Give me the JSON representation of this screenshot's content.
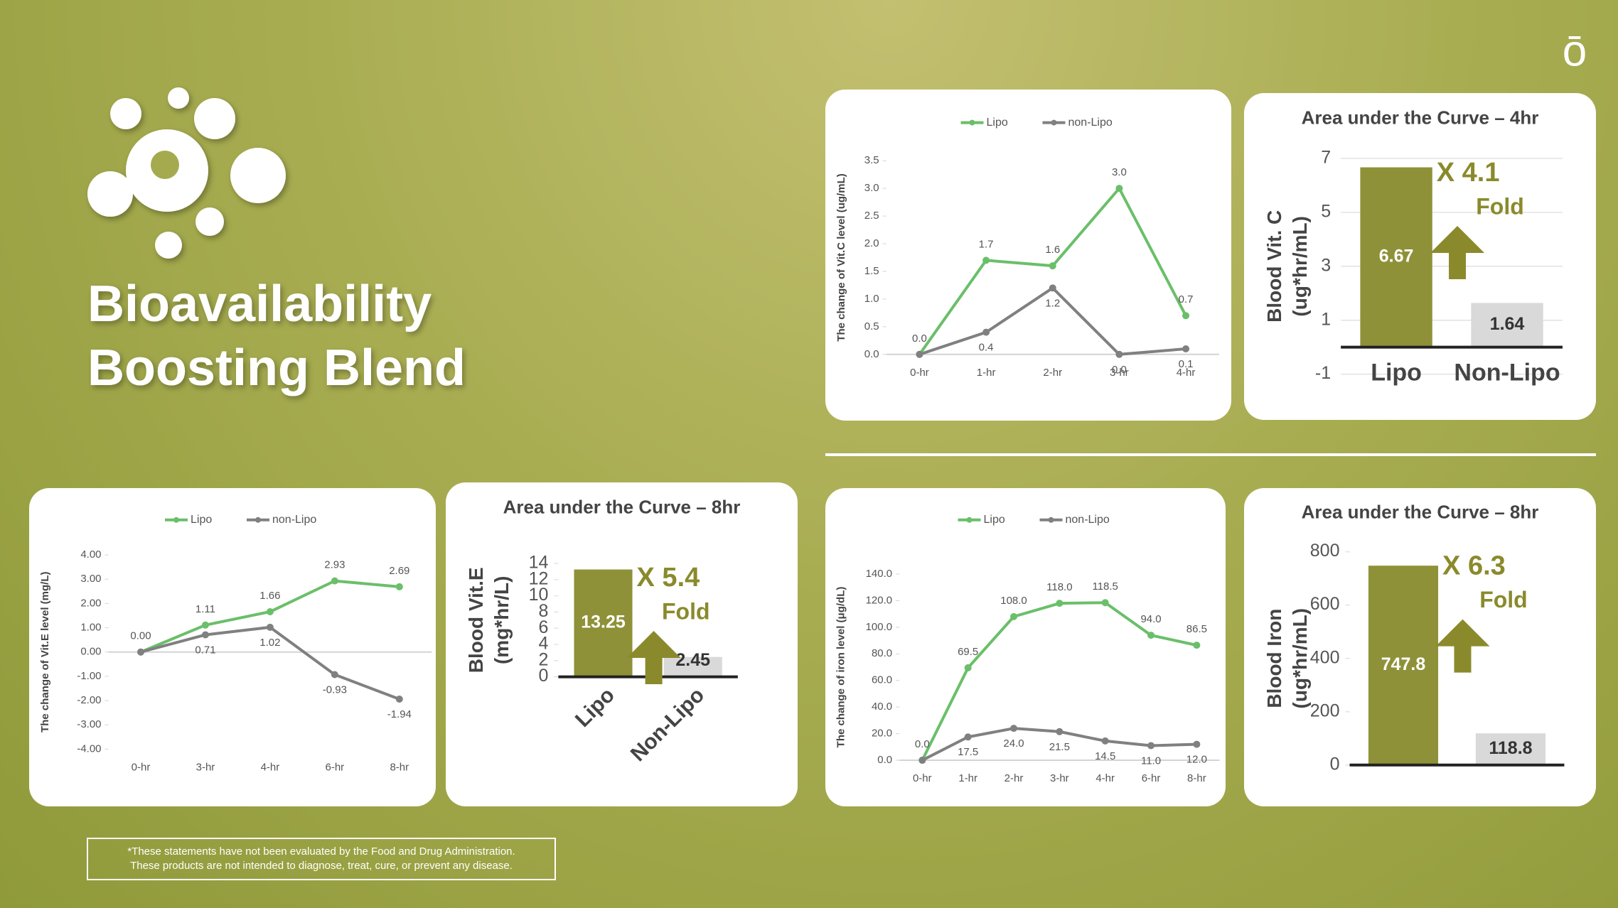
{
  "header": {
    "title": [
      "Bioavailability",
      "Boosting Blend"
    ],
    "logo": "ō"
  },
  "footer": {
    "disclaimer": [
      "*These statements have not been evaluated by the Food and Drug Administration.",
      "These products are not intended to diagnose, treat, cure, or prevent any disease."
    ]
  },
  "chart_data": [
    {
      "type": "line",
      "ylabel": "The change of Vit.C level (ug/mL)",
      "categories": [
        "0-hr",
        "1-hr",
        "2-hr",
        "3-hr",
        "4-hr"
      ],
      "series": [
        {
          "name": "Lipo",
          "color": "#6abf69",
          "values": [
            0.0,
            1.7,
            1.6,
            3.0,
            0.7
          ],
          "value_labels": [
            "0.0",
            "1.7",
            "1.6",
            "3.0",
            "0.7"
          ]
        },
        {
          "name": "non-Lipo",
          "color": "#808080",
          "values": [
            0.0,
            0.4,
            1.2,
            0.0,
            0.1
          ],
          "value_labels": [
            null,
            "0.4",
            "1.2",
            "0.0",
            "0.1"
          ]
        }
      ],
      "ylim": [
        0,
        3.5
      ],
      "yticks": [
        {
          "value": 0,
          "label": "0.0"
        },
        0.5,
        {
          "value": 1,
          "label": "1.0"
        },
        1.5,
        {
          "value": 2,
          "label": "2.0"
        },
        2.5,
        {
          "value": 3,
          "label": "3.0"
        },
        3.5
      ]
    },
    {
      "type": "bar",
      "title": "Area under the Curve – 4hr",
      "ylabel": [
        "Blood Vit. C",
        "(ug*hr/mL)"
      ],
      "categories": [
        "Lipo",
        "Non-Lipo"
      ],
      "values": [
        6.67,
        1.64
      ],
      "colors": [
        "#8e9138",
        "#d9d9d9"
      ],
      "ylim": [
        -1,
        7
      ],
      "yticks": [
        -1,
        1,
        3,
        5,
        7
      ],
      "grid": true,
      "annotations": [
        "X 4.1",
        "Fold"
      ]
    },
    {
      "type": "line",
      "ylabel": "The change of Vit.E level (mg/L)",
      "categories": [
        "0-hr",
        "3-hr",
        "4-hr",
        "6-hr",
        "8-hr"
      ],
      "series": [
        {
          "name": "Lipo",
          "color": "#6abf69",
          "values": [
            0.0,
            1.11,
            1.66,
            2.93,
            2.69
          ],
          "value_labels": [
            "0.00",
            "1.11",
            "1.66",
            "2.93",
            "2.69"
          ]
        },
        {
          "name": "non-Lipo",
          "color": "#808080",
          "values": [
            0.0,
            0.71,
            1.02,
            -0.93,
            -1.94
          ],
          "value_labels": [
            null,
            "0.71",
            "1.02",
            "-0.93",
            "-1.94"
          ]
        }
      ],
      "ylim": [
        -4,
        4
      ],
      "yticks": [
        {
          "value": -4,
          "label": "-4.00"
        },
        {
          "value": -3,
          "label": "-3.00"
        },
        {
          "value": -2,
          "label": "-2.00"
        },
        {
          "value": -1,
          "label": "-1.00"
        },
        {
          "value": 0,
          "label": "0.00"
        },
        {
          "value": 1,
          "label": "1.00"
        },
        {
          "value": 2,
          "label": "2.00"
        },
        {
          "value": 3,
          "label": "3.00"
        },
        {
          "value": 4,
          "label": "4.00"
        }
      ]
    },
    {
      "type": "bar",
      "title": "Area under the Curve – 8hr",
      "ylabel": [
        "Blood Vit.E",
        "(mg*hr/L)"
      ],
      "categories": [
        "Lipo",
        "Non-Lipo"
      ],
      "values": [
        13.25,
        2.45
      ],
      "colors": [
        "#8e9138",
        "#d9d9d9"
      ],
      "ylim": [
        0,
        14
      ],
      "yticks": [
        0,
        2,
        4,
        6,
        8,
        10,
        12,
        14
      ],
      "grid": false,
      "rotate_categories": true,
      "annotations": [
        "X 5.4",
        "Fold"
      ]
    },
    {
      "type": "line",
      "ylabel": "The change of iron level (μg/dL)",
      "categories": [
        "0-hr",
        "1-hr",
        "2-hr",
        "3-hr",
        "4-hr",
        "6-hr",
        "8-hr"
      ],
      "series": [
        {
          "name": "Lipo",
          "color": "#6abf69",
          "values": [
            0.0,
            69.5,
            108.0,
            118.0,
            118.5,
            94.0,
            86.5
          ],
          "value_labels": [
            "0.0",
            "69.5",
            "108.0",
            "118.0",
            "118.5",
            "94.0",
            "86.5"
          ]
        },
        {
          "name": "non-Lipo",
          "color": "#808080",
          "values": [
            0.0,
            17.5,
            24.0,
            21.5,
            14.5,
            11.0,
            12.0
          ],
          "value_labels": [
            null,
            "17.5",
            "24.0",
            "21.5",
            "14.5",
            "11.0",
            "12.0"
          ]
        }
      ],
      "ylim": [
        0,
        140
      ],
      "yticks": [
        {
          "value": 0,
          "label": "0.0"
        },
        {
          "value": 20,
          "label": "20.0"
        },
        {
          "value": 40,
          "label": "40.0"
        },
        {
          "value": 60,
          "label": "60.0"
        },
        {
          "value": 80,
          "label": "80.0"
        },
        {
          "value": 100,
          "label": "100.0"
        },
        {
          "value": 120,
          "label": "120.0"
        },
        {
          "value": 140,
          "label": "140.0"
        }
      ]
    },
    {
      "type": "bar",
      "title": "Area under the Curve – 8hr",
      "ylabel": [
        "Blood Iron",
        "(ug*hr/mL)"
      ],
      "categories": [
        null,
        null
      ],
      "values": [
        747.8,
        118.8
      ],
      "colors": [
        "#8e9138",
        "#d9d9d9"
      ],
      "ylim": [
        0,
        800
      ],
      "yticks": [
        0,
        200,
        400,
        600,
        800
      ],
      "grid": false,
      "annotations": [
        "X 6.3",
        "Fold"
      ]
    }
  ]
}
